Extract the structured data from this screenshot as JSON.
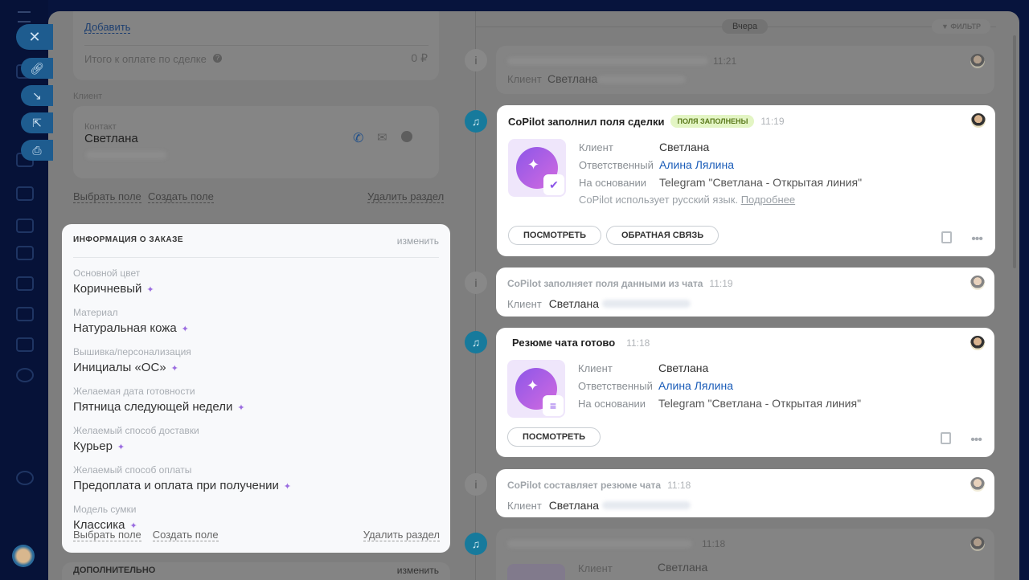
{
  "left": {
    "add_link": "Добавить",
    "total_label": "Итого к оплате по сделке",
    "total_value": "0 ₽",
    "client_section": "Клиент",
    "contact_label": "Контакт",
    "contact_name": "Светлана",
    "select_field": "Выбрать поле",
    "create_field": "Создать поле",
    "delete_section": "Удалить раздел",
    "order": {
      "title": "ИНФОРМАЦИЯ О ЗАКАЗЕ",
      "edit": "изменить",
      "fields": [
        {
          "label": "Основной цвет",
          "value": "Коричневый"
        },
        {
          "label": "Материал",
          "value": "Натуральная кожа"
        },
        {
          "label": "Вышивка/персонализация",
          "value": "Инициалы «ОС»"
        },
        {
          "label": "Желаемая дата готовности",
          "value": "Пятница следующей недели"
        },
        {
          "label": "Желаемый способ доставки",
          "value": "Курьер"
        },
        {
          "label": "Желаемый способ оплаты",
          "value": "Предоплата и оплата при получении"
        },
        {
          "label": "Модель сумки",
          "value": "Классика"
        }
      ],
      "select_field": "Выбрать поле",
      "create_field": "Создать поле",
      "delete_section": "Удалить раздел"
    },
    "extra_title": "ДОПОЛНИТЕЛЬНО",
    "extra_edit": "изменить"
  },
  "timeline": {
    "date": "Вчера",
    "filter": "ФИЛЬТР",
    "items": [
      {
        "time": "11:21",
        "client_label": "Клиент",
        "client": "Светлана"
      },
      {
        "title": "CoPilot заполнил поля сделки",
        "badge": "ПОЛЯ ЗАПОЛНЕНЫ",
        "time": "11:19",
        "client_label": "Клиент",
        "client": "Светлана",
        "resp_label": "Ответственный",
        "resp": "Алина Лялина",
        "basis_label": "На основании",
        "basis": "Telegram \"Светлана - Открытая линия\"",
        "note": "CoPilot использует русский язык.",
        "more": "Подробнее",
        "btn1": "ПОСМОТРЕТЬ",
        "btn2": "ОБРАТНАЯ СВЯЗЬ"
      },
      {
        "title": "CoPilot заполняет поля данными из чата",
        "time": "11:19",
        "client_label": "Клиент",
        "client": "Светлана"
      },
      {
        "title": "Резюме чата готово",
        "time": "11:18",
        "client_label": "Клиент",
        "client": "Светлана",
        "resp_label": "Ответственный",
        "resp": "Алина Лялина",
        "basis_label": "На основании",
        "basis": "Telegram \"Светлана - Открытая линия\"",
        "btn1": "ПОСМОТРЕТЬ"
      },
      {
        "title": "CoPilot составляет резюме чата",
        "time": "11:18",
        "client_label": "Клиент",
        "client": "Светлана"
      },
      {
        "time": "11:18",
        "client_label": "Клиент",
        "client": "Светлана"
      }
    ]
  },
  "colors": {
    "accent": "#177a9c",
    "badge_bg": "#e3f5c4",
    "link": "#1a5cb8",
    "spark": "#9b6de0"
  }
}
